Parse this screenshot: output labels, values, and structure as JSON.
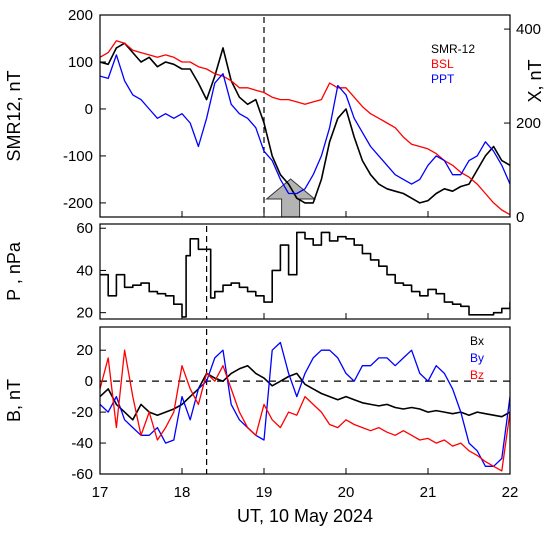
{
  "chart_data": [
    {
      "type": "line",
      "panel": "top",
      "ylabel": "SMR12, nT",
      "ylabel_right": "X, nT",
      "ylim": [
        -230,
        200
      ],
      "yticks": [
        200,
        100,
        0,
        -100,
        -200
      ],
      "ytick_labels": [
        "200",
        "100",
        "0",
        "-100",
        "-200"
      ],
      "ylim_right": [
        0,
        430
      ],
      "yticks_right": [
        400,
        200,
        0
      ],
      "ytick_labels_right": [
        "400",
        "200",
        "0"
      ],
      "xlim": [
        17,
        22
      ],
      "vline_x": 19.0,
      "arrow_x": 19.3,
      "legend": {
        "placement": "top-right"
      },
      "series": [
        {
          "name": "SMR-12",
          "color": "#000000",
          "x": [
            17.0,
            17.1,
            17.2,
            17.3,
            17.4,
            17.5,
            17.6,
            17.7,
            17.8,
            17.9,
            18.0,
            18.1,
            18.2,
            18.3,
            18.4,
            18.5,
            18.6,
            18.7,
            18.8,
            18.9,
            19.0,
            19.1,
            19.2,
            19.3,
            19.4,
            19.5,
            19.6,
            19.7,
            19.8,
            19.9,
            20.0,
            20.1,
            20.2,
            20.3,
            20.4,
            20.5,
            20.6,
            20.7,
            20.8,
            20.9,
            21.0,
            21.1,
            21.2,
            21.3,
            21.4,
            21.5,
            21.6,
            21.7,
            21.8,
            21.9,
            22.0
          ],
          "y": [
            100,
            95,
            130,
            140,
            120,
            100,
            110,
            90,
            100,
            95,
            85,
            85,
            55,
            20,
            70,
            130,
            60,
            25,
            10,
            20,
            -30,
            -100,
            -140,
            -160,
            -190,
            -200,
            -200,
            -150,
            -70,
            -20,
            0,
            -60,
            -110,
            -140,
            -160,
            -170,
            -175,
            -180,
            -190,
            -200,
            -195,
            -180,
            -170,
            -175,
            -165,
            -160,
            -130,
            -100,
            -80,
            -110,
            -120
          ]
        },
        {
          "name": "BSL",
          "color": "#ff0000",
          "x": [
            17.0,
            17.1,
            17.2,
            17.3,
            17.4,
            17.5,
            17.6,
            17.7,
            17.8,
            17.9,
            18.0,
            18.1,
            18.2,
            18.3,
            18.4,
            18.5,
            18.6,
            18.7,
            18.8,
            18.9,
            19.0,
            19.1,
            19.2,
            19.3,
            19.4,
            19.5,
            19.6,
            19.7,
            19.8,
            19.9,
            20.0,
            20.1,
            20.2,
            20.3,
            20.4,
            20.5,
            20.6,
            20.7,
            20.8,
            20.9,
            21.0,
            21.1,
            21.2,
            21.3,
            21.4,
            21.5,
            21.6,
            21.7,
            21.8,
            21.9,
            22.0
          ],
          "y": [
            110,
            120,
            145,
            140,
            125,
            120,
            115,
            110,
            115,
            110,
            100,
            100,
            90,
            85,
            75,
            70,
            60,
            45,
            45,
            40,
            35,
            25,
            20,
            20,
            15,
            10,
            15,
            20,
            55,
            45,
            45,
            25,
            5,
            -10,
            -20,
            -30,
            -40,
            -60,
            -75,
            -80,
            -85,
            -95,
            -110,
            -120,
            -135,
            -145,
            -160,
            -180,
            -200,
            -215,
            -225
          ]
        },
        {
          "name": "PPT",
          "color": "#0000ff",
          "x": [
            17.0,
            17.1,
            17.2,
            17.3,
            17.4,
            17.5,
            17.6,
            17.7,
            17.8,
            17.9,
            18.0,
            18.1,
            18.2,
            18.3,
            18.4,
            18.5,
            18.6,
            18.7,
            18.8,
            18.9,
            19.0,
            19.1,
            19.2,
            19.3,
            19.4,
            19.5,
            19.6,
            19.7,
            19.8,
            19.9,
            20.0,
            20.1,
            20.2,
            20.3,
            20.4,
            20.5,
            20.6,
            20.7,
            20.8,
            20.9,
            21.0,
            21.1,
            21.2,
            21.3,
            21.4,
            21.5,
            21.6,
            21.7,
            21.8,
            21.9,
            22.0
          ],
          "y": [
            70,
            65,
            115,
            60,
            30,
            20,
            0,
            -20,
            -10,
            -20,
            -10,
            -30,
            -80,
            -20,
            55,
            75,
            10,
            -10,
            -20,
            -40,
            -90,
            -110,
            -150,
            -180,
            -180,
            -170,
            -140,
            -100,
            -40,
            50,
            30,
            -20,
            -50,
            -80,
            -100,
            -120,
            -140,
            -150,
            -160,
            -150,
            -120,
            -100,
            -110,
            -140,
            -140,
            -110,
            -100,
            -70,
            -90,
            -120,
            -160
          ]
        }
      ]
    },
    {
      "type": "line",
      "panel": "middle",
      "ylabel": "P  , nPa",
      "ylim": [
        17,
        62
      ],
      "yticks": [
        60,
        40,
        20
      ],
      "ytick_labels": [
        "60",
        "40",
        "20"
      ],
      "xlim": [
        17,
        22
      ],
      "vline_x": 18.3,
      "series": [
        {
          "color": "#000000",
          "x": [
            17.0,
            17.1,
            17.2,
            17.3,
            17.4,
            17.5,
            17.6,
            17.7,
            17.8,
            17.9,
            18.0,
            18.05,
            18.1,
            18.2,
            18.3,
            18.35,
            18.4,
            18.5,
            18.6,
            18.7,
            18.8,
            18.9,
            19.0,
            19.1,
            19.2,
            19.3,
            19.4,
            19.5,
            19.6,
            19.7,
            19.8,
            19.9,
            20.0,
            20.1,
            20.2,
            20.3,
            20.4,
            20.5,
            20.6,
            20.7,
            20.8,
            20.9,
            21.0,
            21.1,
            21.2,
            21.3,
            21.4,
            21.5,
            21.6,
            21.7,
            21.8,
            21.9,
            22.0
          ],
          "y": [
            38,
            28,
            38,
            32,
            33,
            34,
            30,
            29,
            28,
            24,
            18,
            47,
            55,
            50,
            50,
            27,
            30,
            33,
            34,
            32,
            30,
            28,
            25,
            40,
            52,
            38,
            58,
            55,
            52,
            58,
            54,
            56,
            55,
            52,
            48,
            45,
            42,
            38,
            34,
            33,
            30,
            28,
            31,
            29,
            25,
            24,
            23,
            19,
            19,
            19,
            20,
            22,
            25
          ]
        }
      ]
    },
    {
      "type": "line",
      "panel": "bottom",
      "ylabel": "B, nT",
      "ylim": [
        -60,
        35
      ],
      "yticks": [
        20,
        0,
        -20,
        -40,
        -60
      ],
      "ytick_labels": [
        "20",
        "0",
        "-20",
        "-40",
        "-60"
      ],
      "xlim": [
        17,
        22
      ],
      "xticks": [
        17,
        18,
        19,
        20,
        21,
        22
      ],
      "xtick_labels": [
        "17",
        "18",
        "19",
        "20",
        "21",
        "22"
      ],
      "xlabel": "UT, 10 May 2024",
      "vline_x": 18.3,
      "hline_y": 0,
      "legend": {
        "placement": "top-right"
      },
      "series": [
        {
          "name": "Bx",
          "color": "#000000",
          "x": [
            17.0,
            17.1,
            17.2,
            17.3,
            17.4,
            17.5,
            17.6,
            17.7,
            17.8,
            17.9,
            18.0,
            18.1,
            18.2,
            18.3,
            18.4,
            18.5,
            18.6,
            18.7,
            18.8,
            18.9,
            19.0,
            19.1,
            19.2,
            19.3,
            19.4,
            19.5,
            19.6,
            19.7,
            19.8,
            19.9,
            20.0,
            20.1,
            20.2,
            20.3,
            20.4,
            20.5,
            20.6,
            20.7,
            20.8,
            20.9,
            21.0,
            21.1,
            21.2,
            21.3,
            21.4,
            21.5,
            21.6,
            21.7,
            21.8,
            21.9,
            22.0
          ],
          "y": [
            -10,
            -5,
            -15,
            -20,
            -25,
            -15,
            -20,
            -22,
            -20,
            -18,
            -15,
            -10,
            -5,
            5,
            2,
            0,
            5,
            8,
            10,
            5,
            2,
            -3,
            0,
            3,
            5,
            -2,
            -5,
            -8,
            -10,
            -12,
            -10,
            -12,
            -14,
            -15,
            -16,
            -15,
            -17,
            -18,
            -17,
            -18,
            -20,
            -19,
            -20,
            -21,
            -20,
            -22,
            -20,
            -21,
            -22,
            -23,
            -20
          ]
        },
        {
          "name": "By",
          "color": "#0000ff",
          "x": [
            17.0,
            17.1,
            17.2,
            17.3,
            17.4,
            17.5,
            17.6,
            17.7,
            17.8,
            17.9,
            18.0,
            18.1,
            18.2,
            18.3,
            18.4,
            18.5,
            18.6,
            18.7,
            18.8,
            18.9,
            19.0,
            19.1,
            19.2,
            19.3,
            19.4,
            19.5,
            19.6,
            19.7,
            19.8,
            19.9,
            20.0,
            20.1,
            20.2,
            20.3,
            20.4,
            20.5,
            20.6,
            20.7,
            20.8,
            20.9,
            21.0,
            21.1,
            21.2,
            21.3,
            21.4,
            21.5,
            21.6,
            21.7,
            21.8,
            21.9,
            22.0
          ],
          "y": [
            -15,
            -20,
            -10,
            -25,
            -30,
            -35,
            -35,
            -30,
            -40,
            -38,
            -10,
            -25,
            -5,
            0,
            15,
            20,
            -15,
            -25,
            -30,
            -35,
            -38,
            20,
            25,
            5,
            -10,
            5,
            15,
            20,
            20,
            15,
            5,
            0,
            10,
            10,
            15,
            15,
            10,
            15,
            20,
            5,
            0,
            10,
            5,
            -5,
            -20,
            -40,
            -45,
            -55,
            -55,
            -50,
            -10
          ]
        },
        {
          "name": "Bz",
          "color": "#ff0000",
          "x": [
            17.0,
            17.1,
            17.2,
            17.3,
            17.4,
            17.5,
            17.6,
            17.7,
            17.8,
            17.9,
            18.0,
            18.1,
            18.2,
            18.3,
            18.4,
            18.5,
            18.6,
            18.7,
            18.8,
            18.9,
            19.0,
            19.1,
            19.2,
            19.3,
            19.4,
            19.5,
            19.6,
            19.7,
            19.8,
            19.9,
            20.0,
            20.1,
            20.2,
            20.3,
            20.4,
            20.5,
            20.6,
            20.7,
            20.8,
            20.9,
            21.0,
            21.1,
            21.2,
            21.3,
            21.4,
            21.5,
            21.6,
            21.7,
            21.8,
            21.9,
            22.0
          ],
          "y": [
            -5,
            15,
            -30,
            20,
            -10,
            -35,
            -20,
            -38,
            -30,
            -20,
            10,
            -5,
            -15,
            5,
            0,
            10,
            -5,
            -20,
            -30,
            -35,
            -15,
            -25,
            -30,
            -20,
            -22,
            -10,
            -15,
            -20,
            -28,
            -30,
            -25,
            -28,
            -30,
            -32,
            -30,
            -33,
            -35,
            -32,
            -35,
            -38,
            -37,
            -40,
            -38,
            -42,
            -40,
            -45,
            -48,
            -52,
            -55,
            -58,
            -20
          ]
        }
      ]
    }
  ]
}
